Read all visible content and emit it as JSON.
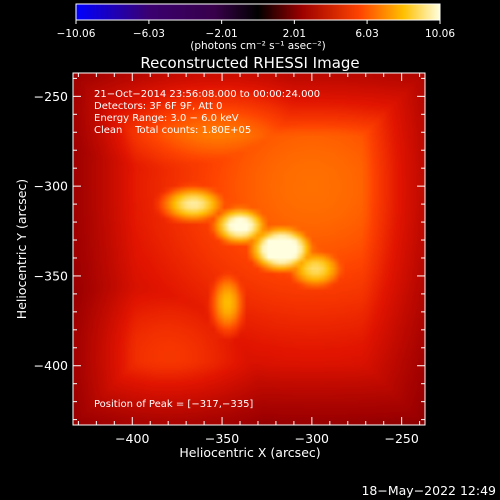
{
  "colorbar": {
    "ticks": [
      "−10.06",
      "−6.03",
      "−2.01",
      "2.01",
      "6.03",
      "10.06"
    ],
    "unit_label": "(photons cm⁻² s⁻¹ asec⁻²)"
  },
  "plot": {
    "title": "Reconstructed RHESSI Image",
    "xlabel": "Heliocentric X (arcsec)",
    "ylabel": "Heliocentric Y (arcsec)",
    "info_lines": [
      "21−Oct−2014 23:56:08.000 to 00:00:24.000",
      "Detectors: 3F 6F 9F, Att 0",
      "Energy Range: 3.0 − 6.0 keV",
      "Clean    Total counts: 1.80E+05"
    ],
    "peak_text": "Position of Peak = [−317,−335]",
    "timestamp": "18−May−2022 12:49"
  },
  "chart_data": {
    "type": "heatmap",
    "title": "Reconstructed RHESSI Image",
    "xlabel": "Heliocentric X (arcsec)",
    "ylabel": "Heliocentric Y (arcsec)",
    "xlim": [
      -433,
      -237
    ],
    "ylim": [
      -433,
      -237
    ],
    "xticks": [
      -400,
      -350,
      -300,
      -250
    ],
    "yticks": [
      -250,
      -300,
      -350,
      -400
    ],
    "xtick_labels": [
      "−400",
      "−350",
      "−300",
      "−250"
    ],
    "ytick_labels": [
      "−250",
      "−300",
      "−350",
      "−400"
    ],
    "color_range": [
      -10.06,
      10.06
    ],
    "peak_position": [
      -317,
      -335
    ],
    "sources": [
      {
        "x": -317,
        "y": -335,
        "amp": 10.0,
        "sx": 14,
        "sy": 10
      },
      {
        "x": -340,
        "y": -322,
        "amp": 8.6,
        "sx": 13,
        "sy": 9
      },
      {
        "x": -366,
        "y": -310,
        "amp": 7.4,
        "sx": 16,
        "sy": 9
      },
      {
        "x": -298,
        "y": -346,
        "amp": 6.9,
        "sx": 14,
        "sy": 10
      },
      {
        "x": -347,
        "y": -365,
        "amp": 6.0,
        "sx": 9,
        "sy": 16
      },
      {
        "x": -352,
        "y": -258,
        "amp": 5.2,
        "sx": 55,
        "sy": 35
      },
      {
        "x": -300,
        "y": -300,
        "amp": 4.6,
        "sx": 90,
        "sy": 80
      },
      {
        "x": -380,
        "y": -395,
        "amp": 3.4,
        "sx": 45,
        "sy": 40
      }
    ]
  }
}
